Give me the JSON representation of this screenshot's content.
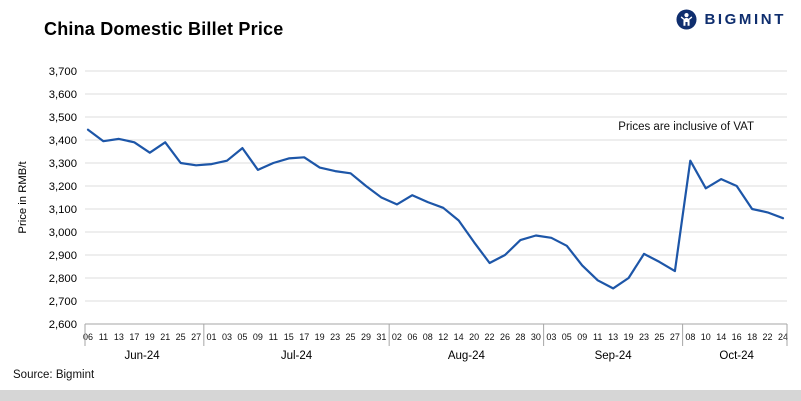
{
  "header": {
    "title": "China Domestic Billet Price",
    "logo_text": "BIGMINT"
  },
  "annotation": "Prices are inclusive of VAT",
  "footer": {
    "source": "Source: Bigmint"
  },
  "chart_data": {
    "type": "line",
    "title": "China Domestic Billet Price",
    "ylabel": "Price in RMB/t",
    "ylim": [
      2600,
      3700
    ],
    "ytick_step": 100,
    "line_color": "#1D56A8",
    "grid": true,
    "legend_position": "none",
    "annotation": "Prices are inclusive of VAT",
    "months": [
      {
        "label": "Jun-24",
        "ticks": [
          "06",
          "11",
          "13",
          "17",
          "19",
          "21",
          "25",
          "27"
        ],
        "values": [
          3445,
          3395,
          3405,
          3390,
          3345,
          3390,
          3300,
          3290
        ]
      },
      {
        "label": "Jul-24",
        "ticks": [
          "01",
          "03",
          "05",
          "09",
          "11",
          "15",
          "17",
          "19",
          "23",
          "25",
          "29",
          "31"
        ],
        "values": [
          3295,
          3310,
          3365,
          3270,
          3300,
          3320,
          3325,
          3280,
          3265,
          3255,
          3200,
          3150
        ]
      },
      {
        "label": "Aug-24",
        "ticks": [
          "02",
          "06",
          "08",
          "12",
          "14",
          "20",
          "22",
          "26",
          "28",
          "30"
        ],
        "values": [
          3120,
          3160,
          3130,
          3105,
          3050,
          2955,
          2865,
          2900,
          2965,
          2985
        ]
      },
      {
        "label": "Sep-24",
        "ticks": [
          "03",
          "05",
          "09",
          "11",
          "13",
          "19",
          "23",
          "25",
          "27"
        ],
        "values": [
          2975,
          2940,
          2855,
          2790,
          2755,
          2800,
          2905,
          2870,
          2830
        ]
      },
      {
        "label": "Oct-24",
        "ticks": [
          "08",
          "10",
          "14",
          "16",
          "18",
          "22",
          "24"
        ],
        "values": [
          3310,
          3190,
          3230,
          3200,
          3100,
          3085,
          3060
        ]
      }
    ]
  }
}
